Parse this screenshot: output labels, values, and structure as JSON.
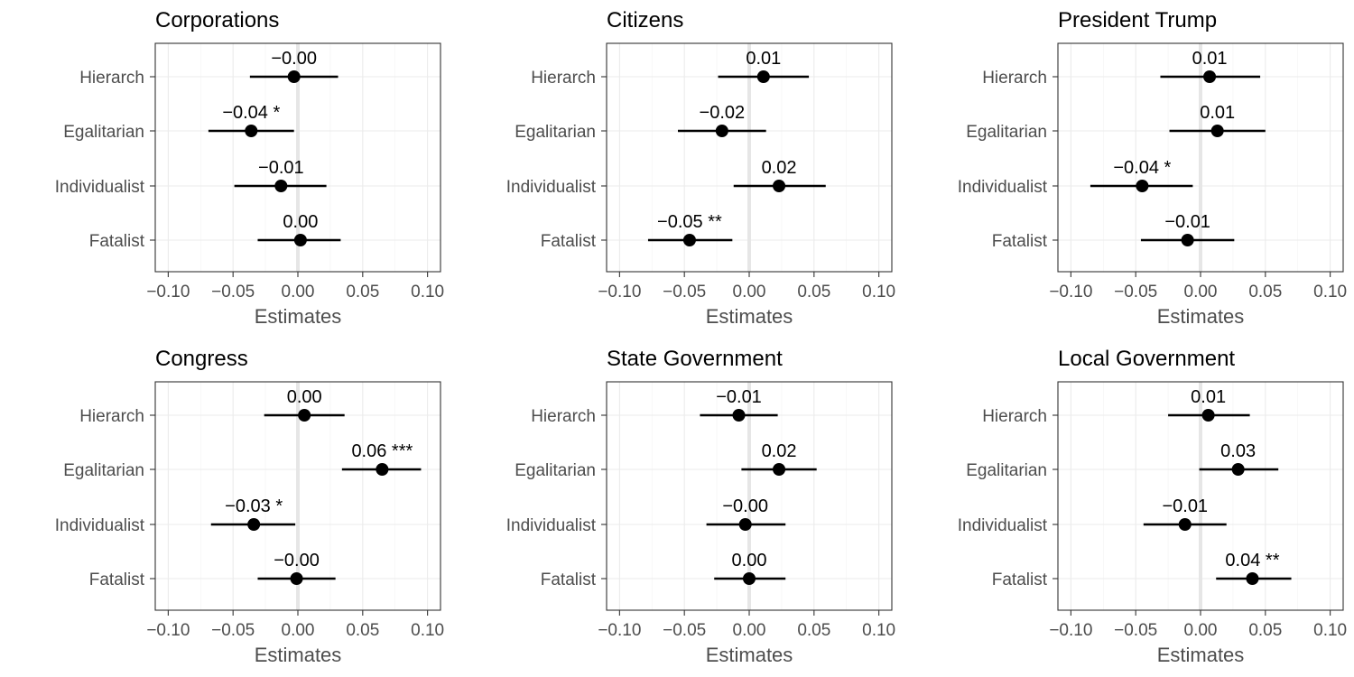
{
  "chart_data": [
    {
      "type": "dot-whisker",
      "title": "Corporations",
      "xlabel": "Estimates",
      "xlim": [
        -0.11,
        0.11
      ],
      "xticks": [
        "−0.10",
        "−0.05",
        "0.00",
        "0.05",
        "0.10"
      ],
      "xtick_values": [
        -0.1,
        -0.05,
        0.0,
        0.05,
        0.1
      ],
      "categories": [
        "Hierarch",
        "Egalitarian",
        "Individualist",
        "Fatalist"
      ],
      "estimates": [
        -0.003,
        -0.036,
        -0.013,
        0.002
      ],
      "ci_low": [
        -0.037,
        -0.069,
        -0.049,
        -0.031
      ],
      "ci_high": [
        0.031,
        -0.003,
        0.022,
        0.033
      ],
      "labels": [
        "−0.00",
        "−0.04 *",
        "−0.01",
        "0.00"
      ],
      "grid": true
    },
    {
      "type": "dot-whisker",
      "title": "Citizens",
      "xlabel": "Estimates",
      "xlim": [
        -0.11,
        0.11
      ],
      "xticks": [
        "−0.10",
        "−0.05",
        "0.00",
        "0.05",
        "0.10"
      ],
      "xtick_values": [
        -0.1,
        -0.05,
        0.0,
        0.05,
        0.1
      ],
      "categories": [
        "Hierarch",
        "Egalitarian",
        "Individualist",
        "Fatalist"
      ],
      "estimates": [
        0.011,
        -0.021,
        0.023,
        -0.046
      ],
      "ci_low": [
        -0.024,
        -0.055,
        -0.012,
        -0.078
      ],
      "ci_high": [
        0.046,
        0.013,
        0.059,
        -0.013
      ],
      "labels": [
        "0.01",
        "−0.02",
        "0.02",
        "−0.05 **"
      ],
      "grid": true
    },
    {
      "type": "dot-whisker",
      "title": "President Trump",
      "xlabel": "Estimates",
      "xlim": [
        -0.11,
        0.11
      ],
      "xticks": [
        "−0.10",
        "−0.05",
        "0.00",
        "0.05",
        "0.10"
      ],
      "xtick_values": [
        -0.1,
        -0.05,
        0.0,
        0.05,
        0.1
      ],
      "categories": [
        "Hierarch",
        "Egalitarian",
        "Individualist",
        "Fatalist"
      ],
      "estimates": [
        0.007,
        0.013,
        -0.045,
        -0.01
      ],
      "ci_low": [
        -0.031,
        -0.024,
        -0.085,
        -0.046
      ],
      "ci_high": [
        0.046,
        0.05,
        -0.006,
        0.026
      ],
      "labels": [
        "0.01",
        "0.01",
        "−0.04 *",
        "−0.01"
      ],
      "grid": true
    },
    {
      "type": "dot-whisker",
      "title": "Congress",
      "xlabel": "Estimates",
      "xlim": [
        -0.11,
        0.11
      ],
      "xticks": [
        "−0.10",
        "−0.05",
        "0.00",
        "0.05",
        "0.10"
      ],
      "xtick_values": [
        -0.1,
        -0.05,
        0.0,
        0.05,
        0.1
      ],
      "categories": [
        "Hierarch",
        "Egalitarian",
        "Individualist",
        "Fatalist"
      ],
      "estimates": [
        0.005,
        0.065,
        -0.034,
        -0.001
      ],
      "ci_low": [
        -0.026,
        0.034,
        -0.067,
        -0.031
      ],
      "ci_high": [
        0.036,
        0.095,
        -0.002,
        0.029
      ],
      "labels": [
        "0.00",
        "0.06 ***",
        "−0.03 *",
        "−0.00"
      ],
      "grid": true
    },
    {
      "type": "dot-whisker",
      "title": "State Government",
      "xlabel": "Estimates",
      "xlim": [
        -0.11,
        0.11
      ],
      "xticks": [
        "−0.10",
        "−0.05",
        "0.00",
        "0.05",
        "0.10"
      ],
      "xtick_values": [
        -0.1,
        -0.05,
        0.0,
        0.05,
        0.1
      ],
      "categories": [
        "Hierarch",
        "Egalitarian",
        "Individualist",
        "Fatalist"
      ],
      "estimates": [
        -0.008,
        0.023,
        -0.003,
        0.0
      ],
      "ci_low": [
        -0.038,
        -0.006,
        -0.033,
        -0.027
      ],
      "ci_high": [
        0.022,
        0.052,
        0.028,
        0.028
      ],
      "labels": [
        "−0.01",
        "0.02",
        "−0.00",
        "0.00"
      ],
      "grid": true
    },
    {
      "type": "dot-whisker",
      "title": "Local Government",
      "xlabel": "Estimates",
      "xlim": [
        -0.11,
        0.11
      ],
      "xticks": [
        "−0.10",
        "−0.05",
        "0.00",
        "0.05",
        "0.10"
      ],
      "xtick_values": [
        -0.1,
        -0.05,
        0.0,
        0.05,
        0.1
      ],
      "categories": [
        "Hierarch",
        "Egalitarian",
        "Individualist",
        "Fatalist"
      ],
      "estimates": [
        0.006,
        0.029,
        -0.012,
        0.04
      ],
      "ci_low": [
        -0.025,
        -0.001,
        -0.044,
        0.012
      ],
      "ci_high": [
        0.038,
        0.06,
        0.02,
        0.07
      ],
      "labels": [
        "0.01",
        "0.03",
        "−0.01",
        "0.04 **"
      ],
      "grid": true
    }
  ]
}
